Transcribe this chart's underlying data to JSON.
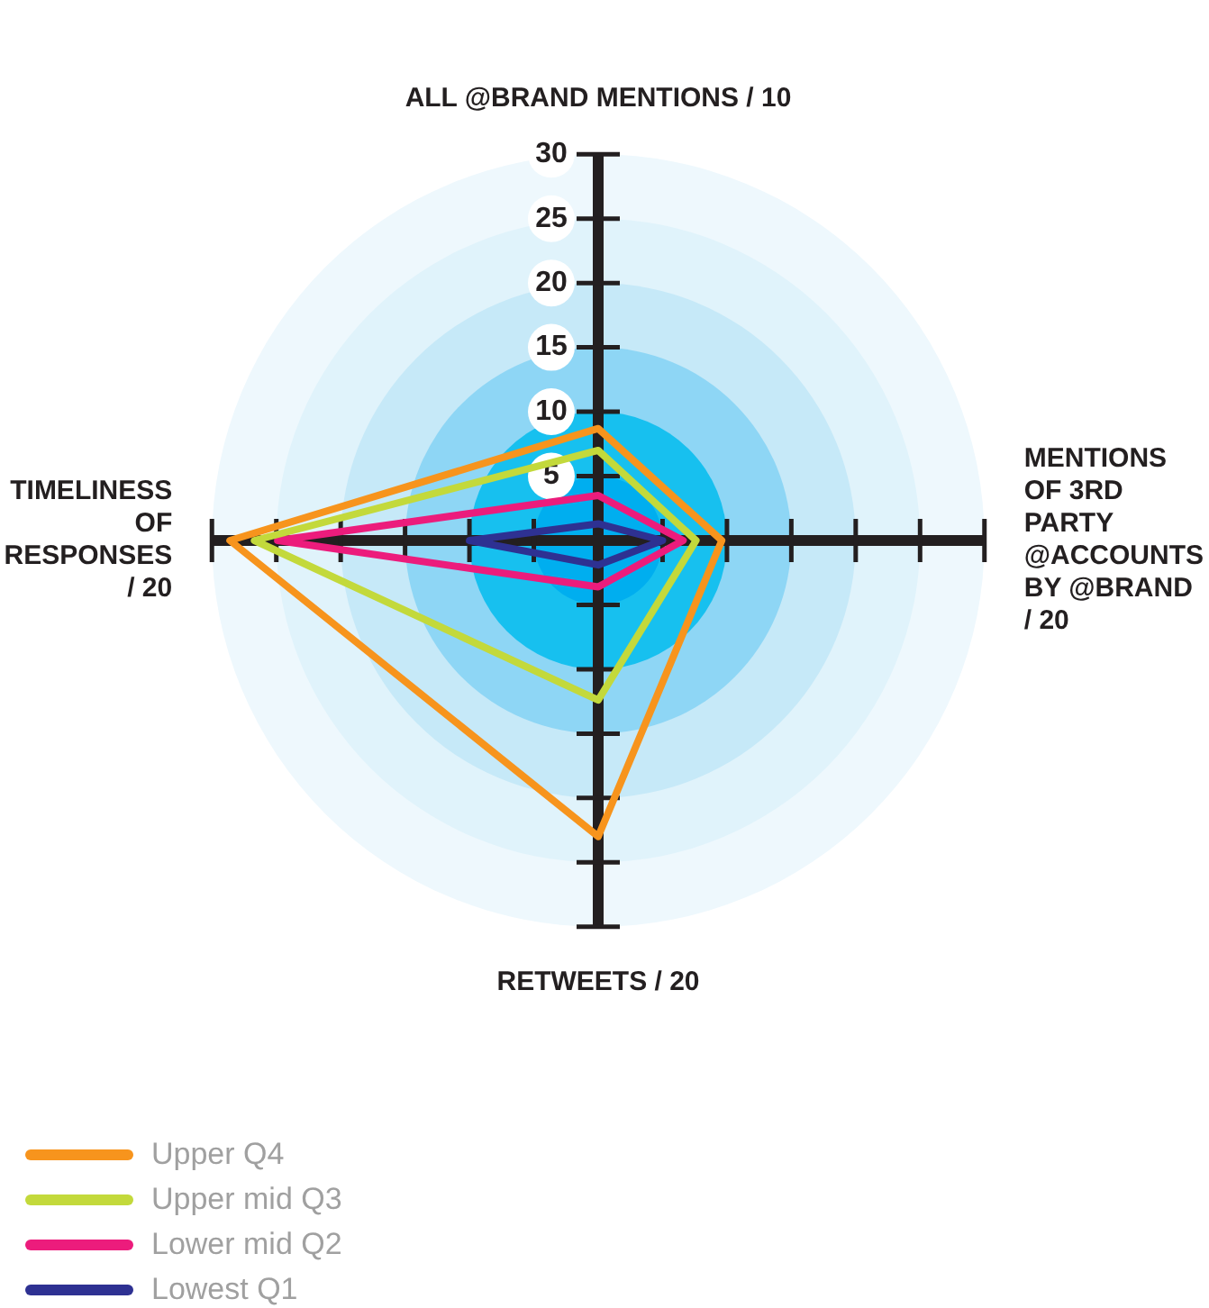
{
  "chart_data": {
    "type": "radar",
    "categories": [
      "ALL @BRAND MENTIONS / 10",
      "MENTIONS OF 3RD PARTY @ACCOUNTS BY @BRAND / 20",
      "RETWEETS / 20",
      "TIMELINESS OF RESPONSES / 20"
    ],
    "series": [
      {
        "name": "Upper Q4",
        "color": "#f7941d",
        "values": [
          8.7,
          9.6,
          23,
          28.6
        ]
      },
      {
        "name": "Upper mid Q3",
        "color": "#c3d93b",
        "values": [
          7,
          7.6,
          12.4,
          26.7
        ]
      },
      {
        "name": "Lower mid Q2",
        "color": "#ec1c7c",
        "values": [
          3.5,
          6.6,
          3.6,
          24.9
        ]
      },
      {
        "name": "Lowest Q1",
        "color": "#2e3192",
        "values": [
          1.3,
          5,
          1.9,
          10
        ]
      }
    ],
    "ylim": [
      0,
      30
    ],
    "yticks": [
      5,
      10,
      15,
      20,
      25,
      30
    ],
    "legend": "bottom left",
    "marker": "none",
    "line_style": "solid",
    "grid": false
  }
}
